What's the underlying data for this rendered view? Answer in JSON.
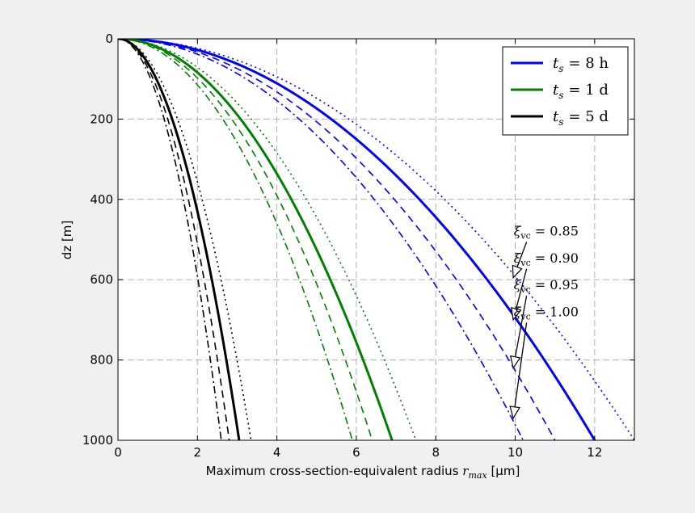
{
  "chart_data": {
    "type": "line",
    "xlabel_prefix": "Maximum cross-section-equivalent radius",
    "xlabel_symbol": "r",
    "xlabel_subscript": "max",
    "xlabel_unit": "[μm]",
    "ylabel": "dz [m]",
    "xlim": [
      0,
      13
    ],
    "ylim": [
      1000,
      0
    ],
    "y_inverted": true,
    "grid": true,
    "x_ticks": [
      0,
      2,
      4,
      6,
      8,
      10,
      12
    ],
    "y_ticks": [
      0,
      200,
      400,
      600,
      800,
      1000
    ],
    "legend_position": "top-right",
    "series": [
      {
        "name": "t_s = 8 h",
        "legend_symbol": "t",
        "legend_sub": "s",
        "legend_value": "= 8 h",
        "color": "#0000ff",
        "linestyle": "solid",
        "xi_vc": 0.9,
        "x": [
          0,
          12.0
        ],
        "y": [
          0,
          1000
        ]
      },
      {
        "color": "#0000ff",
        "linestyle": "dotted",
        "xi_vc": 0.85,
        "x": [
          0,
          13.0
        ],
        "y": [
          0,
          1000
        ]
      },
      {
        "color": "#0000ff",
        "linestyle": "dashed",
        "xi_vc": 0.95,
        "x": [
          0,
          11.0
        ],
        "y": [
          0,
          1000
        ]
      },
      {
        "color": "#0000ff",
        "linestyle": "dashdot",
        "xi_vc": 1.0,
        "x": [
          0,
          10.2
        ],
        "y": [
          0,
          1000
        ]
      },
      {
        "name": "t_s = 1 d",
        "legend_symbol": "t",
        "legend_sub": "s",
        "legend_value": "= 1 d",
        "color": "#008000",
        "linestyle": "solid",
        "xi_vc": 0.9,
        "x": [
          0,
          6.9
        ],
        "y": [
          0,
          1000
        ]
      },
      {
        "color": "#008000",
        "linestyle": "dotted",
        "xi_vc": 0.85,
        "x": [
          0,
          7.5
        ],
        "y": [
          0,
          1000
        ]
      },
      {
        "color": "#008000",
        "linestyle": "dashed",
        "xi_vc": 0.95,
        "x": [
          0,
          6.4
        ],
        "y": [
          0,
          1000
        ]
      },
      {
        "color": "#008000",
        "linestyle": "dashdot",
        "xi_vc": 1.0,
        "x": [
          0,
          5.9
        ],
        "y": [
          0,
          1000
        ]
      },
      {
        "name": "t_s = 5 d",
        "legend_symbol": "t",
        "legend_sub": "s",
        "legend_value": "= 5 d",
        "color": "#000000",
        "linestyle": "solid",
        "xi_vc": 0.9,
        "x": [
          0,
          3.05
        ],
        "y": [
          0,
          1000
        ]
      },
      {
        "color": "#000000",
        "linestyle": "dotted",
        "xi_vc": 0.85,
        "x": [
          0,
          3.35
        ],
        "y": [
          0,
          1000
        ]
      },
      {
        "color": "#000000",
        "linestyle": "dashed",
        "xi_vc": 0.95,
        "x": [
          0,
          2.8
        ],
        "y": [
          0,
          1000
        ]
      },
      {
        "color": "#000000",
        "linestyle": "dashdot",
        "xi_vc": 1.0,
        "x": [
          0,
          2.6
        ],
        "y": [
          0,
          1000
        ]
      }
    ],
    "annotations": [
      {
        "symbol": "ξ",
        "sub": "vc",
        "text": "= 0.85",
        "text_x": 11.1,
        "text_y": 490,
        "arrow_x": 9.95,
        "arrow_y": 595
      },
      {
        "symbol": "ξ",
        "sub": "vc",
        "text": "= 0.90",
        "text_x": 11.1,
        "text_y": 557,
        "arrow_x": 9.95,
        "arrow_y": 700
      },
      {
        "symbol": "ξ",
        "sub": "vc",
        "text": "= 0.95",
        "text_x": 11.1,
        "text_y": 624,
        "arrow_x": 9.95,
        "arrow_y": 820
      },
      {
        "symbol": "ξ",
        "sub": "vc",
        "text": "= 1.00",
        "text_x": 11.1,
        "text_y": 691,
        "arrow_x": 9.95,
        "arrow_y": 945
      }
    ]
  }
}
